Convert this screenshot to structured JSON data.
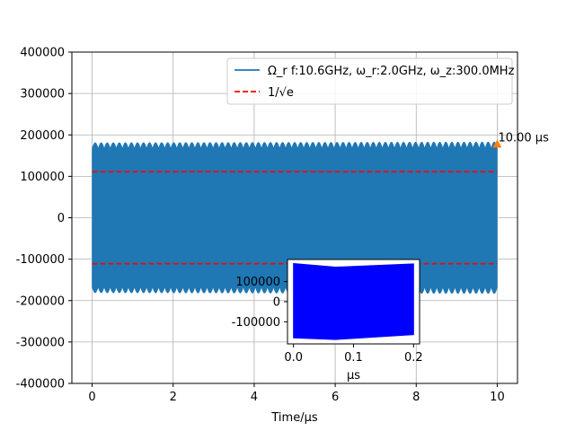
{
  "chart_data": [
    {
      "type": "line",
      "xlabel": "Time/μs",
      "ylabel": "",
      "xlim": [
        -0.5,
        10.5
      ],
      "ylim": [
        -400000,
        400000
      ],
      "x_ticks": [
        0,
        2,
        4,
        6,
        8,
        10
      ],
      "y_ticks": [
        -400000,
        -300000,
        -200000,
        -100000,
        0,
        100000,
        200000,
        300000,
        400000
      ],
      "grid": true,
      "legend_position": "upper-right",
      "series": [
        {
          "name": "Ω_r f:10.6GHz, ω_r:2.0GHz, ω_z:300.0MHz",
          "style": "solid",
          "color": "#1f77b4",
          "envelope": {
            "x_start": 0,
            "x_end": 10,
            "upper_min": 165000,
            "upper_max": 183000,
            "lower_min": -165000,
            "lower_max": -183000,
            "modulation_cycles": 67
          }
        },
        {
          "name": "1/√e",
          "style": "dashed",
          "color": "#ff0000",
          "levels": [
            111000,
            -111000
          ],
          "x_start": 0,
          "x_end": 10
        }
      ],
      "annotation": {
        "text": "10.00 μs",
        "x": 10,
        "y": 178000,
        "marker_color": "#ff7f0e"
      }
    },
    {
      "type": "line",
      "position": "inset",
      "xlabel": "μs",
      "xlim": [
        -0.01,
        0.21
      ],
      "ylim": [
        -210000,
        210000
      ],
      "x_ticks": [
        0.0,
        0.1,
        0.2
      ],
      "y_ticks": [
        -100000,
        0,
        100000
      ],
      "grid": false,
      "series": [
        {
          "color": "#0000ff",
          "envelope": {
            "x": [
              0.0,
              0.07,
              0.2
            ],
            "upper": [
              190000,
              172000,
              188000
            ],
            "lower": [
              -180000,
              -188000,
              -164000
            ]
          }
        }
      ]
    }
  ]
}
